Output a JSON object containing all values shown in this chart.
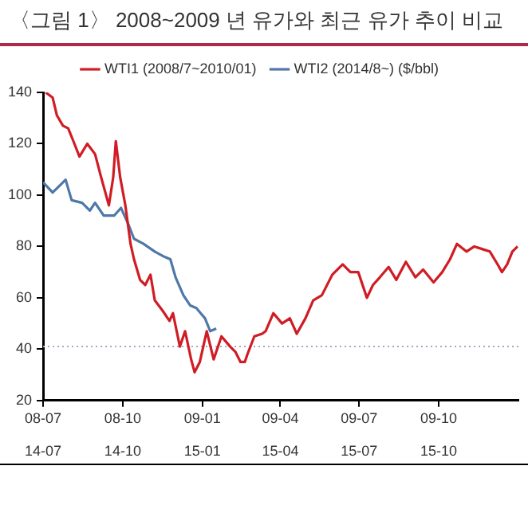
{
  "chart_data": {
    "type": "line",
    "title": "〈그림 1〉 2008~2009 년 유가와 최근 유가 추이 비교",
    "xlim": [
      "2008-07-01",
      "2010-01-01"
    ],
    "xticks": [
      {
        "value": "2008-07",
        "label": "08-07"
      },
      {
        "value": "2008-10",
        "label": "08-10"
      },
      {
        "value": "2009-01",
        "label": "09-01"
      },
      {
        "value": "2009-04",
        "label": "09-04"
      },
      {
        "value": "2009-07",
        "label": "09-07"
      },
      {
        "value": "2009-10",
        "label": "09-10"
      }
    ],
    "x2lim": [
      "2014-07-01",
      "2016-01-01"
    ],
    "x2ticks": [
      {
        "value": "2014-07",
        "label": "14-07"
      },
      {
        "value": "2014-10",
        "label": "14-10"
      },
      {
        "value": "2015-01",
        "label": "15-01"
      },
      {
        "value": "2015-04",
        "label": "15-04"
      },
      {
        "value": "2015-07",
        "label": "15-07"
      },
      {
        "value": "2015-10",
        "label": "15-10"
      }
    ],
    "ylim": [
      20,
      140
    ],
    "yticks": [
      20,
      40,
      60,
      80,
      100,
      120,
      140
    ],
    "grid": false,
    "legend": "top",
    "line_style": "solid",
    "marker": "none",
    "ref_lines": [
      {
        "axis": "y",
        "value": 41,
        "color": "#a0a8c8",
        "line_style": "dotted"
      }
    ],
    "series": [
      {
        "name": "WTI1 (2008/7~2010/01)",
        "color": "#d01c24",
        "x": [
          "2008-07-04",
          "2008-07-12",
          "2008-07-17",
          "2008-07-24",
          "2008-07-30",
          "2008-08-05",
          "2008-08-12",
          "2008-08-21",
          "2008-08-30",
          "2008-09-06",
          "2008-09-15",
          "2008-09-20",
          "2008-09-23",
          "2008-09-28",
          "2008-10-04",
          "2008-10-10",
          "2008-10-14",
          "2008-10-21",
          "2008-10-27",
          "2008-11-02",
          "2008-11-07",
          "2008-11-16",
          "2008-11-24",
          "2008-11-28",
          "2008-12-06",
          "2008-12-12",
          "2008-12-19",
          "2008-12-23",
          "2008-12-29",
          "2009-01-06",
          "2009-01-14",
          "2009-01-23",
          "2009-02-02",
          "2009-02-08",
          "2009-02-14",
          "2009-02-19",
          "2009-02-22",
          "2009-03-02",
          "2009-03-11",
          "2009-03-15",
          "2009-03-24",
          "2009-04-03",
          "2009-04-12",
          "2009-04-20",
          "2009-04-30",
          "2009-05-09",
          "2009-05-19",
          "2009-05-31",
          "2009-06-12",
          "2009-06-21",
          "2009-06-30",
          "2009-07-10",
          "2009-07-17",
          "2009-07-25",
          "2009-08-04",
          "2009-08-13",
          "2009-08-24",
          "2009-09-04",
          "2009-09-13",
          "2009-09-25",
          "2009-10-05",
          "2009-10-14",
          "2009-10-22",
          "2009-11-02",
          "2009-11-11",
          "2009-11-20",
          "2009-11-29",
          "2009-12-08",
          "2009-12-13",
          "2009-12-19",
          "2009-12-25",
          "2009-12-31"
        ],
        "values": [
          140,
          138,
          131,
          127,
          126,
          121,
          115,
          120,
          116,
          107,
          96,
          107,
          121,
          107,
          96,
          81,
          75,
          67,
          65,
          69,
          59,
          55,
          51,
          54,
          41,
          47,
          36,
          31,
          35,
          47,
          36,
          45,
          41,
          39,
          35,
          35,
          38,
          45,
          46,
          47,
          54,
          50,
          52,
          46,
          52,
          59,
          61,
          69,
          73,
          70,
          70,
          60,
          65,
          68,
          72,
          67,
          74,
          68,
          71,
          66,
          70,
          75,
          81,
          78,
          80,
          79,
          78,
          73,
          70,
          73,
          78,
          80
        ]
      },
      {
        "name": "WTI2 (2014/8~) ($/bbl)",
        "color": "#4f78a8",
        "axis": "x2",
        "x": [
          "2014-07-01",
          "2014-07-12",
          "2014-07-18",
          "2014-07-27",
          "2014-08-03",
          "2014-08-15",
          "2014-08-24",
          "2014-08-30",
          "2014-09-09",
          "2014-09-21",
          "2014-09-29",
          "2014-10-07",
          "2014-10-14",
          "2014-10-25",
          "2014-11-07",
          "2014-11-18",
          "2014-11-25",
          "2014-12-01",
          "2014-12-10",
          "2014-12-18",
          "2014-12-25",
          "2015-01-04",
          "2015-01-10",
          "2015-01-17"
        ],
        "values": [
          105,
          101,
          103,
          106,
          98,
          97,
          94,
          97,
          92,
          92,
          95,
          89,
          83,
          81,
          78,
          76,
          75,
          68,
          61,
          57,
          56,
          52,
          47,
          48
        ]
      }
    ]
  }
}
